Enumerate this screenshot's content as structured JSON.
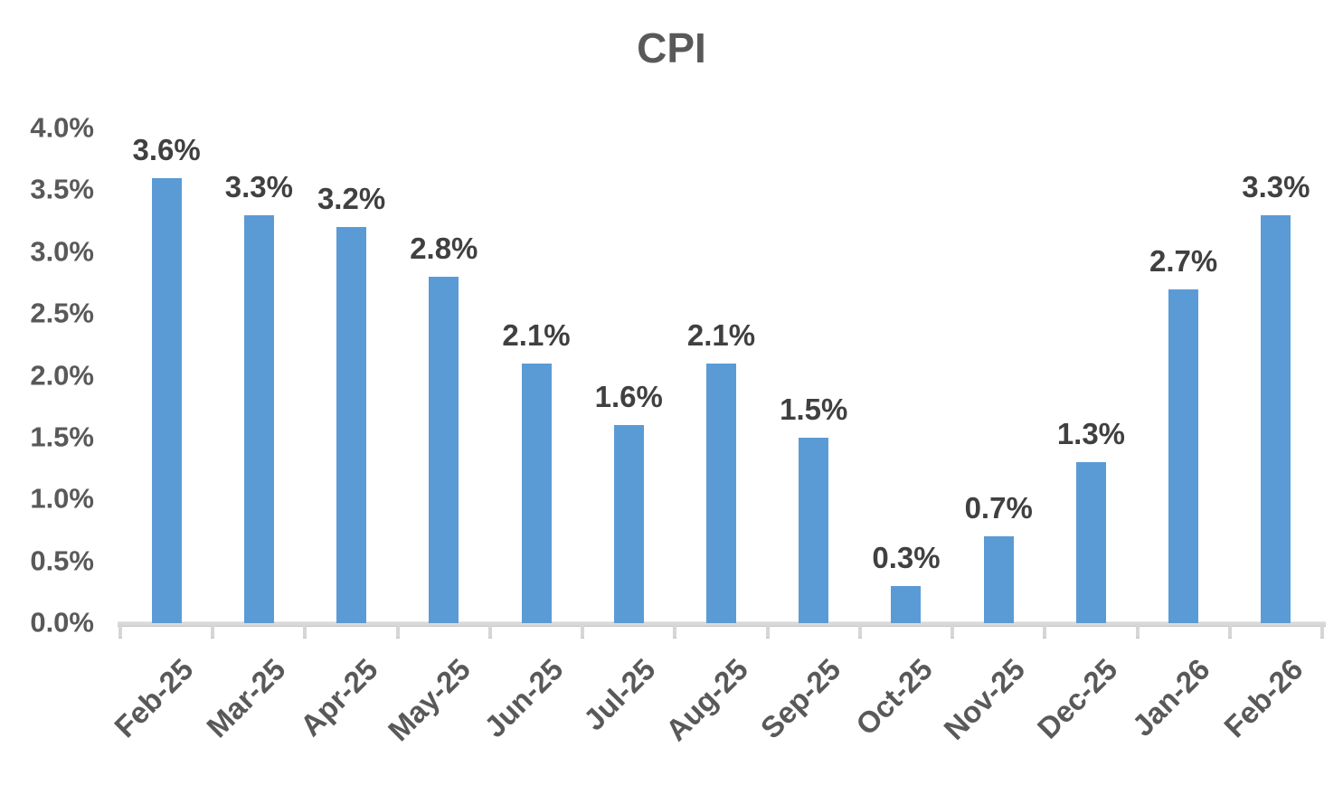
{
  "chart_data": {
    "type": "bar",
    "title": "CPI",
    "categories": [
      "Feb-25",
      "Mar-25",
      "Apr-25",
      "May-25",
      "Jun-25",
      "Jul-25",
      "Aug-25",
      "Sep-25",
      "Oct-25",
      "Nov-25",
      "Dec-25",
      "Jan-26",
      "Feb-26"
    ],
    "values": [
      3.6,
      3.3,
      3.2,
      2.8,
      2.1,
      1.6,
      2.1,
      1.5,
      0.3,
      0.7,
      1.3,
      2.7,
      3.3
    ],
    "data_labels": [
      "3.6%",
      "3.3%",
      "3.2%",
      "2.8%",
      "2.1%",
      "1.6%",
      "2.1%",
      "1.5%",
      "0.3%",
      "0.7%",
      "1.3%",
      "2.7%",
      "3.3%"
    ],
    "xlabel": "",
    "ylabel": "",
    "ylim": [
      0,
      4.0
    ],
    "ytick_labels": [
      "0.0%",
      "0.5%",
      "1.0%",
      "1.5%",
      "2.0%",
      "2.5%",
      "3.0%",
      "3.5%",
      "4.0%"
    ],
    "ytick_values": [
      0,
      0.5,
      1.0,
      1.5,
      2.0,
      2.5,
      3.0,
      3.5,
      4.0
    ],
    "grid": false,
    "legend": null
  },
  "colors": {
    "bar": "#5B9BD5",
    "title_text": "#595959",
    "axis_text": "#595959",
    "data_label_text": "#404040",
    "axis_line": "#D9D9D9",
    "tick_mark": "#D6D6D6"
  }
}
